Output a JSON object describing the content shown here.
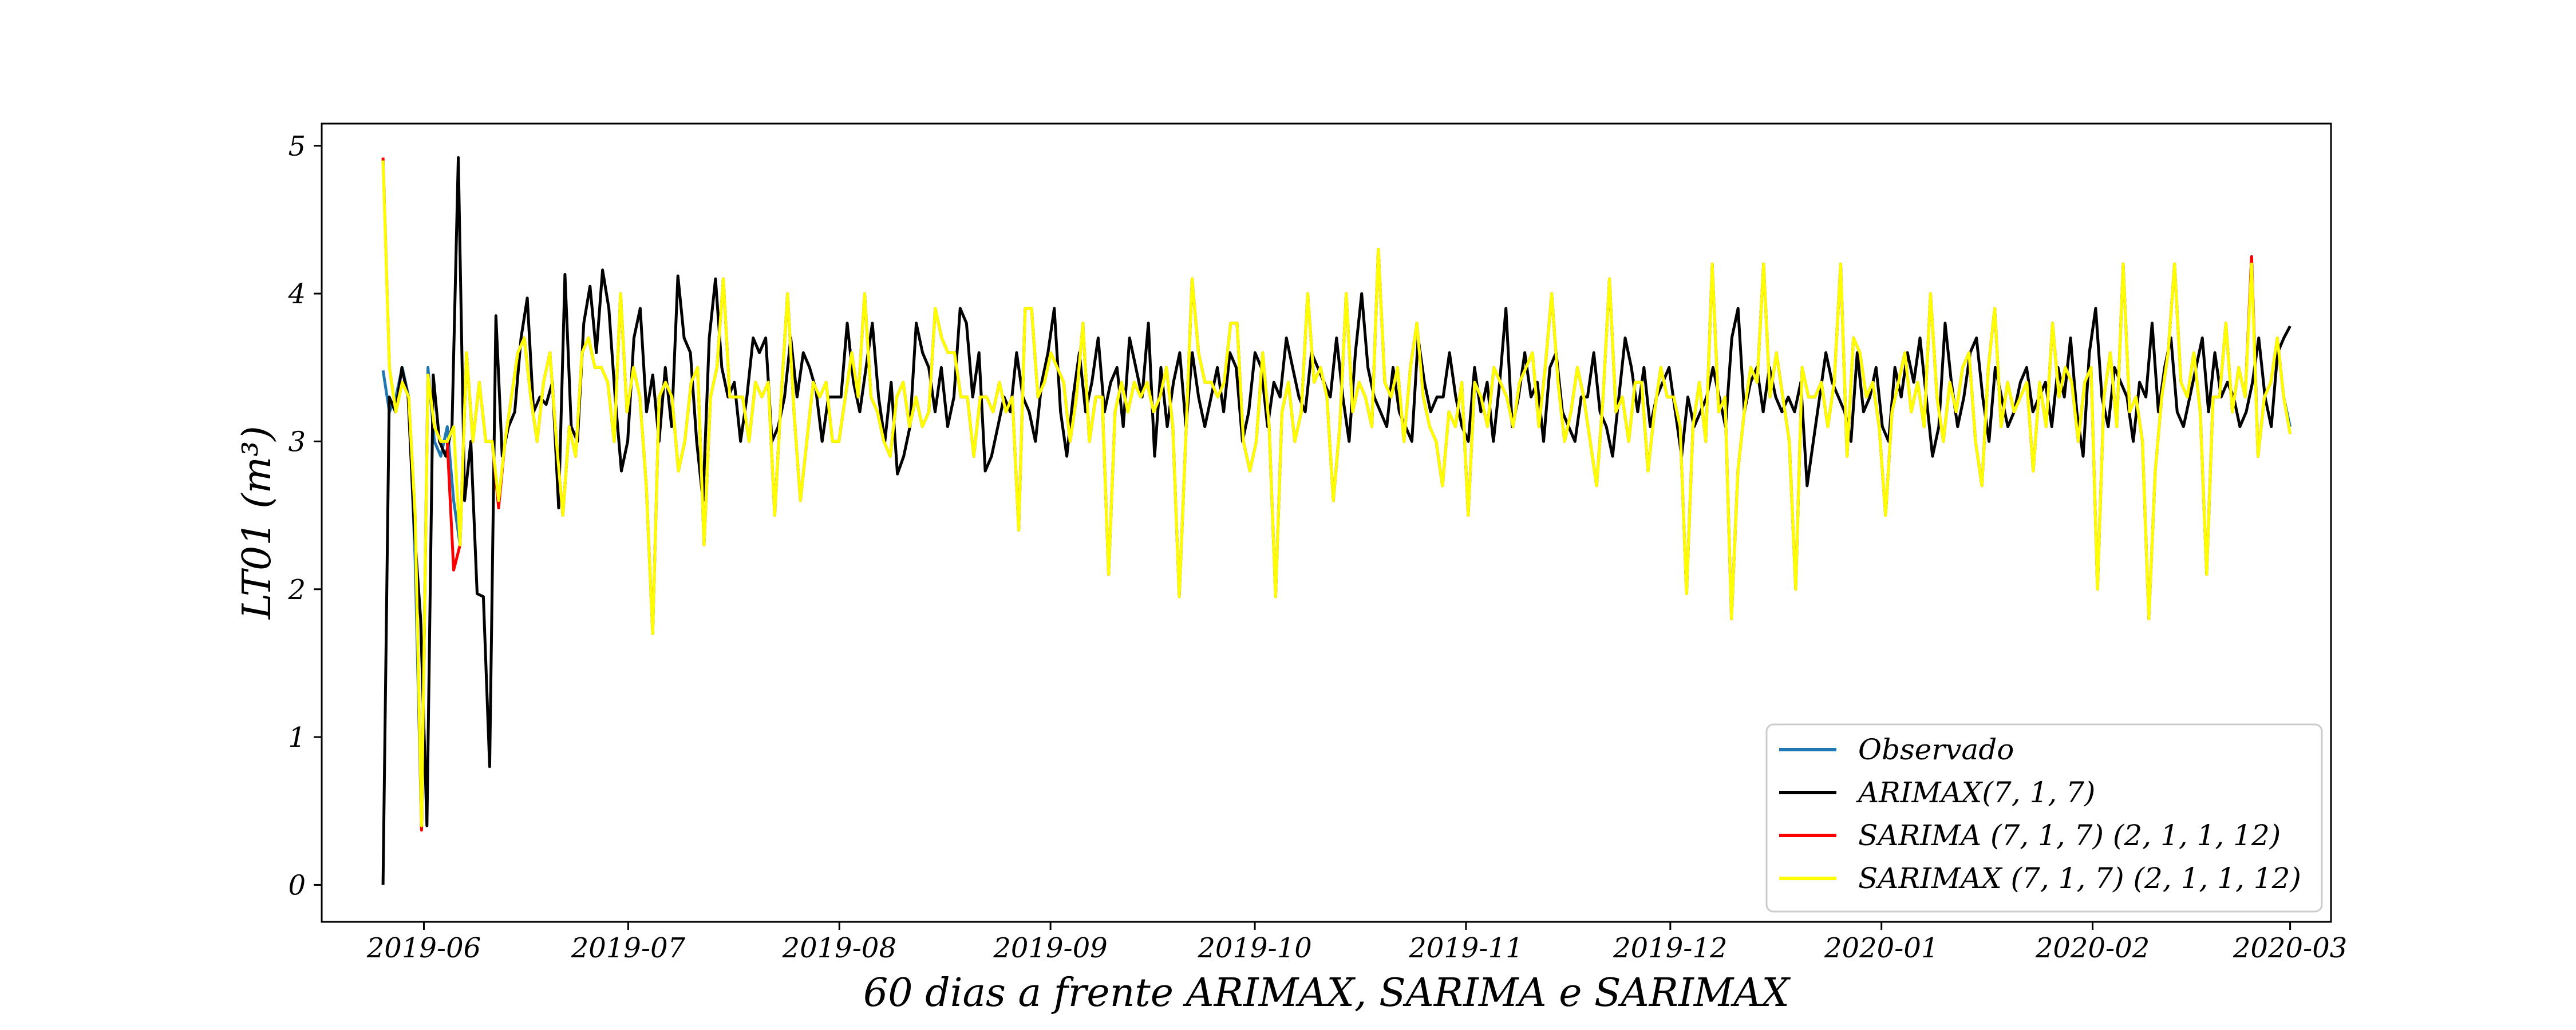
{
  "chart_data": {
    "type": "line",
    "xlabel": "60 dias a frente ARIMAX, SARIMA e SARIMAX",
    "ylabel": "LT01 (m³)",
    "ylim": [
      -0.25,
      5.15
    ],
    "xlim": [
      "2019-05-17",
      "2020-03-07"
    ],
    "x_ticks": [
      "2019-06-01",
      "2019-07-01",
      "2019-08-01",
      "2019-09-01",
      "2019-10-01",
      "2019-11-01",
      "2019-12-01",
      "2020-01-01",
      "2020-02-01",
      "2020-03-01"
    ],
    "x_tick_labels": [
      "2019-06",
      "2019-07",
      "2019-08",
      "2019-09",
      "2019-10",
      "2019-11",
      "2019-12",
      "2020-01",
      "2020-02",
      "2020-03"
    ],
    "y_ticks": [
      0,
      1,
      2,
      3,
      4,
      5
    ],
    "y_tick_labels": [
      "0",
      "1",
      "2",
      "3",
      "4",
      "5"
    ],
    "grid": false,
    "legend_position": "lower-right",
    "x_start": "2019-05-26",
    "x_end": "2020-03-01",
    "series": [
      {
        "name": "Observado",
        "color": "#1f77b4",
        "values": [
          3.48,
          3.2,
          3.3,
          3.5,
          3.3,
          2.2,
          0.38,
          3.5,
          3.0,
          2.9,
          3.1,
          2.6,
          2.3,
          3.6,
          3.0,
          3.4,
          3.0,
          3.0,
          2.6,
          3.0,
          3.3,
          3.6,
          3.7,
          3.3,
          3.0,
          3.4,
          3.6,
          3.0,
          2.5,
          3.1,
          2.9,
          3.6,
          3.7,
          3.5,
          3.5,
          3.4,
          3.0,
          4.0,
          3.2,
          3.5,
          3.3,
          2.7,
          1.7,
          3.3,
          3.4,
          3.3,
          2.8,
          3.0,
          3.4,
          3.5,
          2.3,
          3.3,
          3.5,
          4.1,
          3.3,
          3.3,
          3.3,
          3.0,
          3.4,
          3.3,
          3.4,
          2.5,
          3.3,
          4.0,
          3.2,
          2.6,
          3.0,
          3.4,
          3.3,
          3.4,
          3.0,
          3.0,
          3.3,
          3.6,
          3.3,
          4.0,
          3.3,
          3.2,
          3.0,
          2.9,
          3.3,
          3.4,
          3.1,
          3.3,
          3.1,
          3.2,
          3.9,
          3.7,
          3.6,
          3.6,
          3.3,
          3.3,
          2.9,
          3.3,
          3.3,
          3.2,
          3.4,
          3.2,
          3.3,
          2.4,
          3.9,
          3.9,
          3.3,
          3.4,
          3.6,
          3.5,
          3.4,
          3.0,
          3.3,
          3.8,
          3.0,
          3.3,
          3.3,
          2.1,
          3.2,
          3.4,
          3.2,
          3.4,
          3.3,
          3.4,
          3.2,
          3.3,
          3.5,
          3.1,
          1.95,
          3.0,
          4.1,
          3.6,
          3.4,
          3.4,
          3.3,
          3.4,
          3.8,
          3.8,
          3.0,
          2.8,
          3.0,
          3.6,
          3.1,
          1.95,
          3.2,
          3.4,
          3.0,
          3.2,
          4.0,
          3.4,
          3.5,
          3.3,
          2.6,
          3.1,
          4.0,
          3.2,
          3.4,
          3.3,
          3.1,
          4.3,
          3.4,
          3.3,
          3.5,
          3.0,
          3.5,
          3.8,
          3.3,
          3.1,
          3.0,
          2.7,
          3.2,
          3.1,
          3.4,
          2.5,
          3.4,
          3.3,
          3.1,
          3.5,
          3.4,
          3.3,
          3.1,
          3.4,
          3.5,
          3.6,
          3.1,
          3.5,
          4.0,
          3.4,
          3.0,
          3.2,
          3.5,
          3.3,
          3.0,
          2.7,
          3.3,
          4.1,
          3.2,
          3.3,
          3.0,
          3.4,
          3.4,
          2.8,
          3.2,
          3.5,
          3.3,
          3.3,
          3.1,
          1.97,
          3.1,
          3.4,
          3.0,
          4.2,
          3.2,
          3.3,
          1.8,
          2.8,
          3.2,
          3.5,
          3.4,
          4.2,
          3.3,
          3.6,
          3.3,
          3.0,
          2.0,
          3.5,
          3.3,
          3.3,
          3.4,
          3.1,
          3.4,
          4.2,
          2.9,
          3.7,
          3.6,
          3.3,
          3.4,
          3.1,
          2.5,
          3.2,
          3.4,
          3.6,
          3.2,
          3.4,
          3.1,
          4.0,
          3.3,
          3.0,
          3.4,
          3.2,
          3.5,
          3.6,
          3.0,
          2.7,
          3.5,
          3.9,
          3.1,
          3.4,
          3.2,
          3.3,
          3.4,
          2.8,
          3.4,
          3.1,
          3.8,
          3.3,
          3.5,
          3.4,
          3.0,
          3.4,
          3.5,
          2.0,
          3.3,
          3.6,
          3.1,
          4.2,
          3.2,
          3.3,
          3.0,
          1.8,
          2.8,
          3.3,
          3.6,
          4.2,
          3.4,
          3.3,
          3.6,
          3.2,
          2.1,
          3.3,
          3.3,
          3.8,
          3.2,
          3.5,
          3.3,
          4.25,
          2.9,
          3.3,
          3.4,
          3.7,
          3.3,
          3.1
        ]
      },
      {
        "name": "ARIMAX(7, 1, 7)",
        "color": "#000000",
        "values": [
          0.0,
          3.3,
          3.2,
          3.5,
          3.3,
          2.4,
          1.8,
          0.4,
          3.45,
          3.0,
          2.9,
          3.1,
          4.92,
          2.6,
          3.0,
          1.97,
          1.95,
          0.8,
          3.85,
          2.9,
          3.1,
          3.2,
          3.7,
          3.97,
          3.2,
          3.3,
          3.25,
          3.4,
          2.55,
          4.13,
          3.1,
          3.0,
          3.8,
          4.05,
          3.6,
          4.16,
          3.9,
          3.3,
          2.8,
          3.0,
          3.7,
          3.9,
          3.2,
          3.45,
          3.0,
          3.5,
          3.1,
          4.12,
          3.7,
          3.6,
          3.0,
          2.6,
          3.7,
          4.1,
          3.5,
          3.3,
          3.4,
          3.0,
          3.3,
          3.7,
          3.6,
          3.7,
          3.0,
          3.1,
          3.3,
          3.7,
          3.3,
          3.6,
          3.5,
          3.35,
          3.0,
          3.3,
          3.3,
          3.3,
          3.8,
          3.4,
          3.2,
          3.5,
          3.8,
          3.3,
          3.0,
          3.4,
          2.78,
          2.9,
          3.1,
          3.8,
          3.6,
          3.5,
          3.2,
          3.5,
          3.1,
          3.3,
          3.9,
          3.8,
          3.3,
          3.6,
          2.8,
          2.9,
          3.1,
          3.3,
          3.2,
          3.6,
          3.3,
          3.2,
          3.0,
          3.4,
          3.6,
          3.9,
          3.2,
          2.9,
          3.3,
          3.6,
          3.2,
          3.4,
          3.7,
          3.2,
          3.4,
          3.5,
          3.1,
          3.7,
          3.5,
          3.3,
          3.8,
          2.9,
          3.5,
          3.1,
          3.4,
          3.6,
          3.1,
          3.6,
          3.3,
          3.1,
          3.3,
          3.5,
          3.2,
          3.6,
          3.5,
          3.0,
          3.2,
          3.6,
          3.5,
          3.1,
          3.4,
          3.3,
          3.7,
          3.5,
          3.3,
          3.2,
          3.6,
          3.5,
          3.4,
          3.3,
          3.7,
          3.3,
          3.0,
          3.6,
          4.0,
          3.5,
          3.3,
          3.2,
          3.1,
          3.5,
          3.2,
          3.1,
          3.0,
          3.7,
          3.4,
          3.2,
          3.3,
          3.3,
          3.6,
          3.3,
          3.1,
          3.0,
          3.5,
          3.2,
          3.4,
          3.0,
          3.4,
          3.9,
          3.1,
          3.3,
          3.6,
          3.3,
          3.4,
          3.0,
          3.5,
          3.6,
          3.2,
          3.1,
          3.0,
          3.3,
          3.3,
          3.6,
          3.2,
          3.1,
          2.9,
          3.3,
          3.7,
          3.5,
          3.2,
          3.5,
          3.1,
          3.3,
          3.4,
          3.5,
          3.2,
          2.9,
          3.3,
          3.1,
          3.2,
          3.3,
          3.5,
          3.3,
          3.1,
          3.7,
          3.9,
          3.2,
          3.4,
          3.5,
          3.2,
          3.5,
          3.3,
          3.2,
          3.3,
          3.2,
          3.4,
          2.7,
          3.0,
          3.3,
          3.6,
          3.4,
          3.3,
          3.2,
          3.0,
          3.6,
          3.2,
          3.3,
          3.5,
          3.1,
          3.0,
          3.5,
          3.3,
          3.6,
          3.4,
          3.7,
          3.3,
          2.9,
          3.1,
          3.8,
          3.4,
          3.1,
          3.3,
          3.6,
          3.7,
          3.3,
          3.0,
          3.5,
          3.3,
          3.1,
          3.2,
          3.4,
          3.5,
          3.2,
          3.3,
          3.4,
          3.1,
          3.5,
          3.3,
          3.7,
          3.2,
          2.9,
          3.6,
          3.9,
          3.3,
          3.1,
          3.5,
          3.4,
          3.3,
          3.0,
          3.4,
          3.3,
          3.8,
          3.2,
          3.5,
          3.7,
          3.2,
          3.1,
          3.3,
          3.5,
          3.7,
          3.2,
          3.6,
          3.3,
          3.4,
          3.3,
          3.1,
          3.2,
          3.4,
          3.7,
          3.3,
          3.1,
          3.6,
          3.7,
          3.78
        ]
      },
      {
        "name": "SARIMA (7, 1, 7) (2, 1, 1, 12)",
        "color": "#ff0000",
        "values": [
          4.92,
          3.5,
          3.2,
          3.4,
          3.3,
          2.5,
          0.37,
          3.45,
          3.1,
          3.0,
          3.0,
          2.13,
          2.3,
          3.6,
          3.0,
          3.4,
          3.0,
          3.0,
          2.55,
          3.0,
          3.3,
          3.6,
          3.7,
          3.3,
          3.0,
          3.4,
          3.6,
          3.0,
          2.5,
          3.1,
          2.9,
          3.6,
          3.7,
          3.5,
          3.5,
          3.4,
          3.0,
          4.0,
          3.2,
          3.5,
          3.3,
          2.7,
          1.7,
          3.3,
          3.4,
          3.3,
          2.8,
          3.0,
          3.4,
          3.5,
          2.3,
          3.3,
          3.5,
          4.1,
          3.3,
          3.3,
          3.3,
          3.0,
          3.4,
          3.3,
          3.4,
          2.5,
          3.3,
          4.0,
          3.2,
          2.6,
          3.0,
          3.4,
          3.3,
          3.4,
          3.0,
          3.0,
          3.3,
          3.6,
          3.3,
          4.0,
          3.3,
          3.2,
          3.0,
          2.9,
          3.3,
          3.4,
          3.1,
          3.3,
          3.1,
          3.2,
          3.9,
          3.7,
          3.6,
          3.6,
          3.3,
          3.3,
          2.9,
          3.3,
          3.3,
          3.2,
          3.4,
          3.2,
          3.3,
          2.4,
          3.9,
          3.9,
          3.3,
          3.4,
          3.6,
          3.5,
          3.4,
          3.0,
          3.3,
          3.8,
          3.0,
          3.3,
          3.3,
          2.1,
          3.2,
          3.4,
          3.2,
          3.4,
          3.3,
          3.4,
          3.2,
          3.3,
          3.5,
          3.1,
          1.95,
          3.0,
          4.1,
          3.6,
          3.4,
          3.4,
          3.3,
          3.4,
          3.8,
          3.8,
          3.0,
          2.8,
          3.0,
          3.6,
          3.1,
          1.95,
          3.2,
          3.4,
          3.0,
          3.2,
          4.0,
          3.4,
          3.5,
          3.3,
          2.6,
          3.1,
          4.0,
          3.2,
          3.4,
          3.3,
          3.1,
          4.3,
          3.4,
          3.3,
          3.5,
          3.0,
          3.5,
          3.8,
          3.3,
          3.1,
          3.0,
          2.7,
          3.2,
          3.1,
          3.4,
          2.5,
          3.4,
          3.3,
          3.1,
          3.5,
          3.4,
          3.3,
          3.1,
          3.4,
          3.5,
          3.6,
          3.1,
          3.5,
          4.0,
          3.4,
          3.0,
          3.2,
          3.5,
          3.3,
          3.0,
          2.7,
          3.3,
          4.1,
          3.2,
          3.3,
          3.0,
          3.4,
          3.4,
          2.8,
          3.2,
          3.5,
          3.3,
          3.3,
          3.1,
          1.97,
          3.1,
          3.4,
          3.0,
          4.2,
          3.2,
          3.3,
          1.8,
          2.8,
          3.2,
          3.5,
          3.4,
          4.2,
          3.3,
          3.6,
          3.3,
          3.0,
          2.0,
          3.5,
          3.3,
          3.3,
          3.4,
          3.1,
          3.4,
          4.2,
          2.9,
          3.7,
          3.6,
          3.3,
          3.4,
          3.1,
          2.5,
          3.2,
          3.4,
          3.6,
          3.2,
          3.4,
          3.1,
          4.0,
          3.3,
          3.0,
          3.4,
          3.2,
          3.5,
          3.6,
          3.0,
          2.7,
          3.5,
          3.9,
          3.1,
          3.4,
          3.2,
          3.3,
          3.4,
          2.8,
          3.4,
          3.1,
          3.8,
          3.3,
          3.5,
          3.4,
          3.0,
          3.4,
          3.5,
          2.0,
          3.3,
          3.6,
          3.1,
          4.2,
          3.2,
          3.3,
          3.0,
          1.8,
          2.8,
          3.3,
          3.6,
          4.2,
          3.4,
          3.3,
          3.6,
          3.2,
          2.1,
          3.3,
          3.3,
          3.8,
          3.2,
          3.5,
          3.3,
          4.25,
          2.9,
          3.3,
          3.4,
          3.7,
          3.3,
          3.05
        ]
      },
      {
        "name": "SARIMAX (7, 1, 7) (2, 1, 1, 12)",
        "color": "#ffff00",
        "values": [
          4.9,
          3.5,
          3.2,
          3.4,
          3.3,
          2.5,
          0.4,
          3.45,
          3.1,
          3.0,
          3.0,
          3.1,
          2.3,
          3.6,
          3.0,
          3.4,
          3.0,
          3.0,
          2.6,
          3.0,
          3.3,
          3.6,
          3.7,
          3.3,
          3.0,
          3.4,
          3.6,
          3.0,
          2.5,
          3.1,
          2.9,
          3.6,
          3.7,
          3.5,
          3.5,
          3.4,
          3.0,
          4.0,
          3.2,
          3.5,
          3.3,
          2.7,
          1.7,
          3.3,
          3.4,
          3.3,
          2.8,
          3.0,
          3.4,
          3.5,
          2.3,
          3.3,
          3.5,
          4.1,
          3.3,
          3.3,
          3.3,
          3.0,
          3.4,
          3.3,
          3.4,
          2.5,
          3.3,
          4.0,
          3.2,
          2.6,
          3.0,
          3.4,
          3.3,
          3.4,
          3.0,
          3.0,
          3.3,
          3.6,
          3.3,
          4.0,
          3.3,
          3.2,
          3.0,
          2.9,
          3.3,
          3.4,
          3.1,
          3.3,
          3.1,
          3.2,
          3.9,
          3.7,
          3.6,
          3.6,
          3.3,
          3.3,
          2.9,
          3.3,
          3.3,
          3.2,
          3.4,
          3.2,
          3.3,
          2.4,
          3.9,
          3.9,
          3.3,
          3.4,
          3.6,
          3.5,
          3.4,
          3.0,
          3.3,
          3.8,
          3.0,
          3.3,
          3.3,
          2.1,
          3.2,
          3.4,
          3.2,
          3.4,
          3.3,
          3.4,
          3.2,
          3.3,
          3.5,
          3.1,
          1.95,
          3.0,
          4.1,
          3.6,
          3.4,
          3.4,
          3.3,
          3.4,
          3.8,
          3.8,
          3.0,
          2.8,
          3.0,
          3.6,
          3.1,
          1.95,
          3.2,
          3.4,
          3.0,
          3.2,
          4.0,
          3.4,
          3.5,
          3.3,
          2.6,
          3.1,
          4.0,
          3.2,
          3.4,
          3.3,
          3.1,
          4.3,
          3.4,
          3.3,
          3.5,
          3.0,
          3.5,
          3.8,
          3.3,
          3.1,
          3.0,
          2.7,
          3.2,
          3.1,
          3.4,
          2.5,
          3.4,
          3.3,
          3.1,
          3.5,
          3.4,
          3.3,
          3.1,
          3.4,
          3.5,
          3.6,
          3.1,
          3.5,
          4.0,
          3.4,
          3.0,
          3.2,
          3.5,
          3.3,
          3.0,
          2.7,
          3.3,
          4.1,
          3.2,
          3.3,
          3.0,
          3.4,
          3.4,
          2.8,
          3.2,
          3.5,
          3.3,
          3.3,
          3.1,
          1.97,
          3.1,
          3.4,
          3.0,
          4.2,
          3.2,
          3.3,
          1.8,
          2.8,
          3.2,
          3.5,
          3.4,
          4.2,
          3.3,
          3.6,
          3.3,
          3.0,
          2.0,
          3.5,
          3.3,
          3.3,
          3.4,
          3.1,
          3.4,
          4.2,
          2.9,
          3.7,
          3.6,
          3.3,
          3.4,
          3.1,
          2.5,
          3.2,
          3.4,
          3.6,
          3.2,
          3.4,
          3.1,
          4.0,
          3.3,
          3.0,
          3.4,
          3.2,
          3.5,
          3.6,
          3.0,
          2.7,
          3.5,
          3.9,
          3.1,
          3.4,
          3.2,
          3.3,
          3.4,
          2.8,
          3.4,
          3.1,
          3.8,
          3.3,
          3.5,
          3.4,
          3.0,
          3.4,
          3.5,
          2.0,
          3.3,
          3.6,
          3.1,
          4.2,
          3.2,
          3.3,
          3.0,
          1.8,
          2.8,
          3.3,
          3.6,
          4.2,
          3.4,
          3.3,
          3.6,
          3.2,
          2.1,
          3.3,
          3.3,
          3.8,
          3.2,
          3.5,
          3.3,
          4.2,
          2.9,
          3.3,
          3.4,
          3.7,
          3.3,
          3.05
        ]
      }
    ]
  }
}
